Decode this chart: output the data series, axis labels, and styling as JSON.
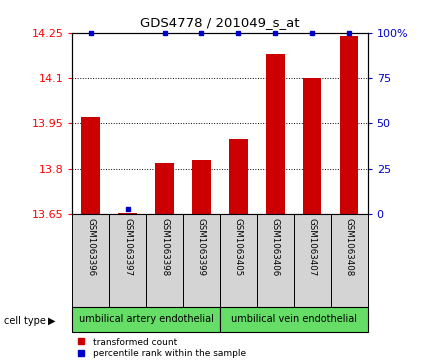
{
  "title": "GDS4778 / 201049_s_at",
  "samples": [
    "GSM1063396",
    "GSM1063397",
    "GSM1063398",
    "GSM1063399",
    "GSM1063405",
    "GSM1063406",
    "GSM1063407",
    "GSM1063408"
  ],
  "red_values": [
    13.97,
    13.655,
    13.82,
    13.83,
    13.9,
    14.18,
    14.1,
    14.24
  ],
  "blue_values": [
    100,
    3,
    100,
    100,
    100,
    100,
    100,
    100
  ],
  "ylim_left": [
    13.65,
    14.25
  ],
  "ylim_right": [
    0,
    100
  ],
  "yticks_left": [
    13.65,
    13.8,
    13.95,
    14.1,
    14.25
  ],
  "yticks_right": [
    0,
    25,
    50,
    75,
    100
  ],
  "cell_type_labels": [
    "umbilical artery endothelial",
    "umbilical vein endothelial"
  ],
  "cell_type_groups": [
    4,
    4
  ],
  "bar_color": "#cc0000",
  "dot_color": "#0000cc",
  "sample_bg_color": "#d4d4d4",
  "legend_red": "transformed count",
  "legend_blue": "percentile rank within the sample",
  "green_color": "#66dd66"
}
